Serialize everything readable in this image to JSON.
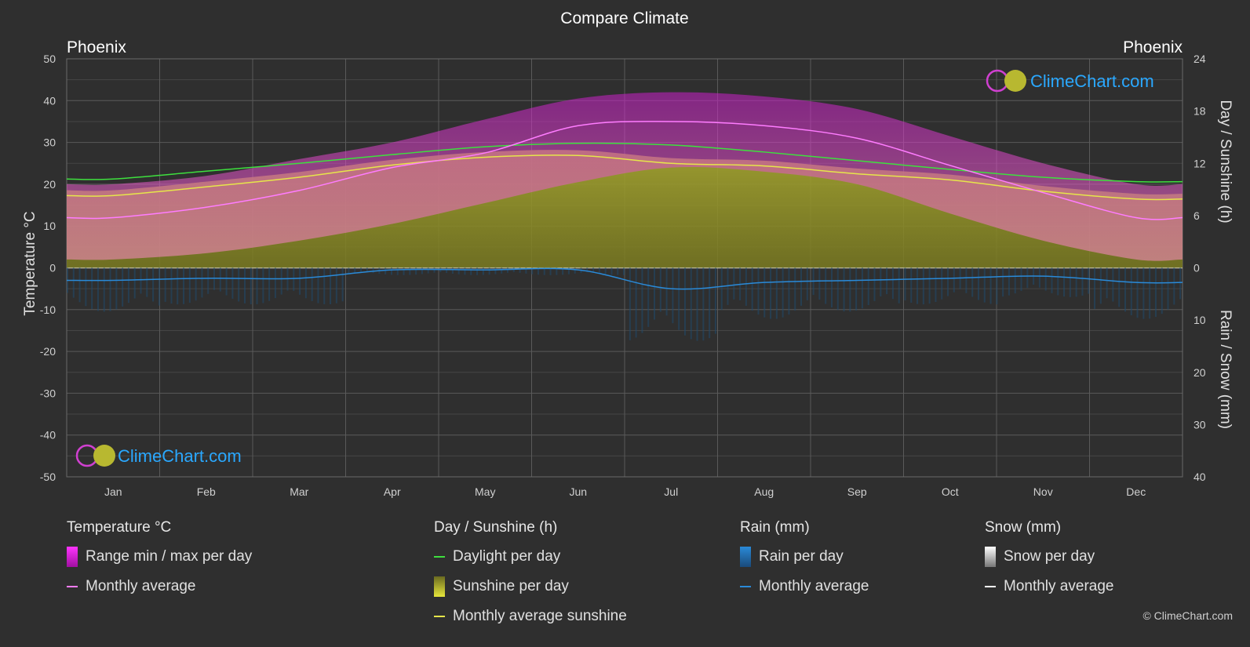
{
  "title": "Compare Climate",
  "city_left": "Phoenix",
  "city_right": "Phoenix",
  "copyright": "© ClimeChart.com",
  "logo_text": "ClimeChart.com",
  "axes": {
    "left_title": "Temperature °C",
    "right_top_title": "Day / Sunshine (h)",
    "right_bottom_title": "Rain / Snow (mm)",
    "temp_ticks": [
      "50",
      "40",
      "30",
      "20",
      "10",
      "0",
      "-10",
      "-20",
      "-30",
      "-40",
      "-50"
    ],
    "sun_ticks": [
      "24",
      "18",
      "12",
      "6",
      "0"
    ],
    "rain_ticks": [
      "10",
      "20",
      "30",
      "40"
    ],
    "temp_range": [
      -50,
      50
    ],
    "sun_range": [
      0,
      24
    ],
    "rain_range": [
      0,
      40
    ]
  },
  "colors": {
    "background": "#2f2f2f",
    "temp_range": "#c81ec8",
    "temp_avg": "#ff7cff",
    "daylight": "#3ee03e",
    "sunshine_fill": "#9a9a2a",
    "sunshine_avg": "#e6e64a",
    "rain": "#2a8ad8",
    "snow": "#cccccc",
    "logo_text": "#2aa8ff"
  },
  "chart_data": {
    "type": "area",
    "categories": [
      "Jan",
      "Feb",
      "Mar",
      "Apr",
      "May",
      "Jun",
      "Jul",
      "Aug",
      "Sep",
      "Oct",
      "Nov",
      "Dec"
    ],
    "series": [
      {
        "name": "Range min / max per day",
        "min": [
          7,
          8.5,
          11.5,
          15.5,
          20.5,
          25.5,
          29,
          28,
          25,
          18,
          11.5,
          7
        ],
        "max": [
          20,
          22,
          26,
          30,
          35.5,
          40.5,
          42,
          41,
          38,
          31.5,
          25,
          20
        ]
      },
      {
        "name": "Monthly average temperature",
        "values": [
          12,
          14.5,
          18.5,
          24,
          27.5,
          34,
          35,
          34,
          31,
          24.5,
          18,
          12
        ]
      },
      {
        "name": "Daylight per day",
        "values": [
          10.2,
          11.1,
          12.0,
          13.0,
          13.9,
          14.3,
          14.1,
          13.3,
          12.3,
          11.3,
          10.4,
          9.9
        ]
      },
      {
        "name": "Monthly average sunshine",
        "values": [
          8.3,
          9.3,
          10.4,
          11.8,
          12.7,
          12.9,
          12.0,
          11.7,
          10.8,
          10.1,
          8.8,
          7.9
        ]
      },
      {
        "name": "Rain monthly average",
        "values": [
          0.6,
          0.5,
          0.5,
          0.1,
          0.1,
          0.1,
          1.0,
          0.7,
          0.6,
          0.5,
          0.4,
          0.7
        ]
      },
      {
        "name": "Snow monthly average",
        "values": [
          0,
          0,
          0,
          0,
          0,
          0,
          0,
          0,
          0,
          0,
          0,
          0
        ]
      }
    ],
    "grid": true
  },
  "legend": {
    "temp": {
      "title": "Temperature °C",
      "items": [
        "Range min / max per day",
        "Monthly average"
      ]
    },
    "sun": {
      "title": "Day / Sunshine (h)",
      "items": [
        "Daylight per day",
        "Sunshine per day",
        "Monthly average sunshine"
      ]
    },
    "rain": {
      "title": "Rain (mm)",
      "items": [
        "Rain per day",
        "Monthly average"
      ]
    },
    "snow": {
      "title": "Snow (mm)",
      "items": [
        "Snow per day",
        "Monthly average"
      ]
    }
  }
}
